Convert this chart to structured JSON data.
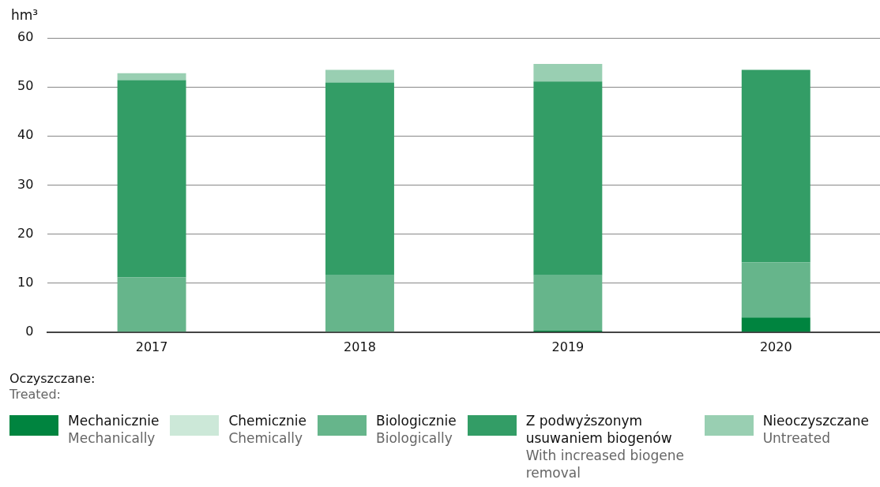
{
  "chart_data": {
    "type": "bar",
    "ylabel": "hm³",
    "legend_title": "Oczyszczane:\nTreated:",
    "categories": [
      "2017",
      "2018",
      "2019",
      "2020"
    ],
    "stacked": true,
    "series": [
      {
        "name": "Mechanicznie\nMechanically",
        "color": "#00843f",
        "values": [
          null,
          0,
          0.3,
          3.0
        ]
      },
      {
        "name": "Chemicznie\nChemically",
        "color": "#cce8d8",
        "values": [
          0,
          0,
          0,
          0
        ]
      },
      {
        "name": "Biologicznie\nBiologically",
        "color": "#66b58b",
        "values": [
          11.2,
          11.6,
          11.3,
          11.2
        ]
      },
      {
        "name": "Z podwyższonym usuwaniem biogenów\nWith increased biogene removal",
        "color": "#339d66",
        "values": [
          40.2,
          39.3,
          39.5,
          39.3
        ]
      },
      {
        "name": "Nieoczyszczane\nUntreated",
        "color": "#99cfb2",
        "values": [
          1.4,
          2.6,
          3.6,
          0
        ]
      }
    ],
    "ylim": [
      0,
      60
    ],
    "yticks": [
      0,
      10,
      20,
      30,
      40,
      50,
      60
    ],
    "grid": "y",
    "legend": "bottom"
  }
}
